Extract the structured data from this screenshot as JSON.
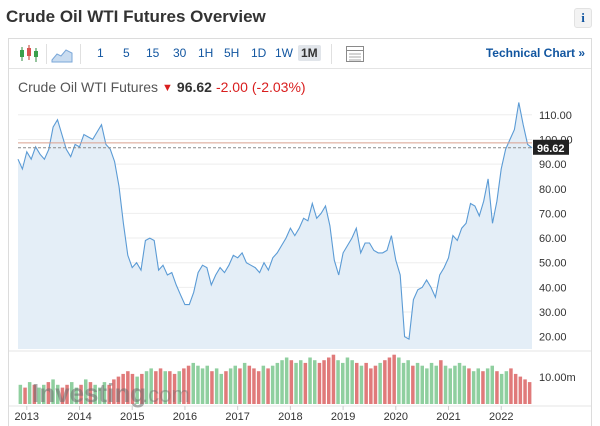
{
  "header": {
    "title": "Crude Oil WTI Futures Overview",
    "info_icon": "i"
  },
  "toolbar": {
    "intervals": [
      "1",
      "5",
      "15",
      "30",
      "1H",
      "5H",
      "1D",
      "1W",
      "1M"
    ],
    "active": "1M",
    "technical_chart": "Technical Chart »"
  },
  "quote": {
    "name": "Crude Oil WTI Futures",
    "price": "96.62",
    "change": "-2.00",
    "change_pct": "(-2.03%)"
  },
  "watermark": {
    "brand": "Investing",
    "suffix": ".com"
  },
  "colors": {
    "line": "#5b9bd5",
    "area": "#e4eef7",
    "up_volume": "#8fcf9f",
    "down_volume": "#e07a7a",
    "price_line": "#c0392b",
    "ref_line": "#d9a08f",
    "negative": "#d91e1e"
  },
  "chart_data": {
    "type": "area",
    "title": "Crude Oil WTI Futures",
    "x_tick_labels": [
      "2013",
      "2014",
      "2015",
      "2016",
      "2017",
      "2018",
      "2019",
      "2020",
      "2021",
      "2022"
    ],
    "y_tick_labels": [
      "110.00",
      "100.00",
      "90.00",
      "80.00",
      "70.00",
      "60.00",
      "50.00",
      "40.00",
      "30.00",
      "20.00"
    ],
    "ylim": [
      15,
      116
    ],
    "current_price_label": "96.62",
    "volume_axis_label": "10.00m",
    "series": [
      {
        "name": "Crude Oil WTI Futures",
        "points": [
          [
            "2012-11",
            92
          ],
          [
            "2012-12",
            88
          ],
          [
            "2013-01",
            95
          ],
          [
            "2013-02",
            92
          ],
          [
            "2013-03",
            97
          ],
          [
            "2013-04",
            94
          ],
          [
            "2013-05",
            92
          ],
          [
            "2013-06",
            96
          ],
          [
            "2013-07",
            105
          ],
          [
            "2013-08",
            108
          ],
          [
            "2013-09",
            102
          ],
          [
            "2013-10",
            96
          ],
          [
            "2013-11",
            93
          ],
          [
            "2013-12",
            98
          ],
          [
            "2014-01",
            97
          ],
          [
            "2014-02",
            102
          ],
          [
            "2014-03",
            101
          ],
          [
            "2014-04",
            100
          ],
          [
            "2014-05",
            103
          ],
          [
            "2014-06",
            106
          ],
          [
            "2014-07",
            98
          ],
          [
            "2014-08",
            96
          ],
          [
            "2014-09",
            91
          ],
          [
            "2014-10",
            81
          ],
          [
            "2014-11",
            66
          ],
          [
            "2014-12",
            53
          ],
          [
            "2015-01",
            48
          ],
          [
            "2015-02",
            50
          ],
          [
            "2015-03",
            47
          ],
          [
            "2015-04",
            59
          ],
          [
            "2015-05",
            60
          ],
          [
            "2015-06",
            59
          ],
          [
            "2015-07",
            47
          ],
          [
            "2015-08",
            49
          ],
          [
            "2015-09",
            45
          ],
          [
            "2015-10",
            46
          ],
          [
            "2015-11",
            41
          ],
          [
            "2015-12",
            37
          ],
          [
            "2016-01",
            33
          ],
          [
            "2016-02",
            33
          ],
          [
            "2016-03",
            38
          ],
          [
            "2016-04",
            46
          ],
          [
            "2016-05",
            49
          ],
          [
            "2016-06",
            48
          ],
          [
            "2016-07",
            41
          ],
          [
            "2016-08",
            45
          ],
          [
            "2016-09",
            48
          ],
          [
            "2016-10",
            46
          ],
          [
            "2016-11",
            49
          ],
          [
            "2016-12",
            53
          ],
          [
            "2017-01",
            52
          ],
          [
            "2017-02",
            54
          ],
          [
            "2017-03",
            50
          ],
          [
            "2017-04",
            49
          ],
          [
            "2017-05",
            48
          ],
          [
            "2017-06",
            46
          ],
          [
            "2017-07",
            50
          ],
          [
            "2017-08",
            47
          ],
          [
            "2017-09",
            52
          ],
          [
            "2017-10",
            54
          ],
          [
            "2017-11",
            57
          ],
          [
            "2017-12",
            60
          ],
          [
            "2018-01",
            64
          ],
          [
            "2018-02",
            61
          ],
          [
            "2018-03",
            64
          ],
          [
            "2018-04",
            68
          ],
          [
            "2018-05",
            67
          ],
          [
            "2018-06",
            74
          ],
          [
            "2018-07",
            68
          ],
          [
            "2018-08",
            70
          ],
          [
            "2018-09",
            73
          ],
          [
            "2018-10",
            65
          ],
          [
            "2018-11",
            51
          ],
          [
            "2018-12",
            45
          ],
          [
            "2019-01",
            54
          ],
          [
            "2019-02",
            57
          ],
          [
            "2019-03",
            60
          ],
          [
            "2019-04",
            64
          ],
          [
            "2019-05",
            54
          ],
          [
            "2019-06",
            58
          ],
          [
            "2019-07",
            58
          ],
          [
            "2019-08",
            55
          ],
          [
            "2019-09",
            54
          ],
          [
            "2019-10",
            54
          ],
          [
            "2019-11",
            55
          ],
          [
            "2019-12",
            61
          ],
          [
            "2020-01",
            51
          ],
          [
            "2020-02",
            45
          ],
          [
            "2020-03",
            20
          ],
          [
            "2020-04",
            19
          ],
          [
            "2020-05",
            35
          ],
          [
            "2020-06",
            39
          ],
          [
            "2020-07",
            40
          ],
          [
            "2020-08",
            43
          ],
          [
            "2020-09",
            40
          ],
          [
            "2020-10",
            36
          ],
          [
            "2020-11",
            45
          ],
          [
            "2020-12",
            48
          ],
          [
            "2021-01",
            52
          ],
          [
            "2021-02",
            61
          ],
          [
            "2021-03",
            59
          ],
          [
            "2021-04",
            64
          ],
          [
            "2021-05",
            66
          ],
          [
            "2021-06",
            74
          ],
          [
            "2021-07",
            73
          ],
          [
            "2021-08",
            69
          ],
          [
            "2021-09",
            75
          ],
          [
            "2021-10",
            84
          ],
          [
            "2021-11",
            66
          ],
          [
            "2021-12",
            75
          ],
          [
            "2022-01",
            88
          ],
          [
            "2022-02",
            96
          ],
          [
            "2022-03",
            100
          ],
          [
            "2022-04",
            104
          ],
          [
            "2022-05",
            115
          ],
          [
            "2022-06",
            106
          ],
          [
            "2022-07",
            98
          ],
          [
            "2022-08",
            96.62
          ]
        ]
      },
      {
        "name": "Volume",
        "unit": "m",
        "values": [
          [
            7,
            "u"
          ],
          [
            6,
            "d"
          ],
          [
            8,
            "u"
          ],
          [
            7,
            "d"
          ],
          [
            6,
            "u"
          ],
          [
            7,
            "u"
          ],
          [
            8,
            "d"
          ],
          [
            9,
            "u"
          ],
          [
            7,
            "u"
          ],
          [
            6,
            "d"
          ],
          [
            7,
            "d"
          ],
          [
            8,
            "u"
          ],
          [
            6,
            "u"
          ],
          [
            7,
            "d"
          ],
          [
            9,
            "u"
          ],
          [
            8,
            "d"
          ],
          [
            7,
            "u"
          ],
          [
            6,
            "u"
          ],
          [
            8,
            "u"
          ],
          [
            7,
            "d"
          ],
          [
            9,
            "d"
          ],
          [
            10,
            "d"
          ],
          [
            11,
            "d"
          ],
          [
            12,
            "d"
          ],
          [
            11,
            "d"
          ],
          [
            10,
            "u"
          ],
          [
            11,
            "d"
          ],
          [
            12,
            "u"
          ],
          [
            13,
            "u"
          ],
          [
            12,
            "d"
          ],
          [
            13,
            "d"
          ],
          [
            12,
            "u"
          ],
          [
            12,
            "d"
          ],
          [
            11,
            "d"
          ],
          [
            12,
            "u"
          ],
          [
            13,
            "d"
          ],
          [
            14,
            "d"
          ],
          [
            15,
            "u"
          ],
          [
            14,
            "u"
          ],
          [
            13,
            "u"
          ],
          [
            14,
            "u"
          ],
          [
            12,
            "d"
          ],
          [
            13,
            "u"
          ],
          [
            11,
            "u"
          ],
          [
            12,
            "d"
          ],
          [
            13,
            "u"
          ],
          [
            14,
            "u"
          ],
          [
            13,
            "d"
          ],
          [
            15,
            "u"
          ],
          [
            14,
            "d"
          ],
          [
            13,
            "d"
          ],
          [
            12,
            "d"
          ],
          [
            14,
            "u"
          ],
          [
            13,
            "d"
          ],
          [
            14,
            "u"
          ],
          [
            15,
            "u"
          ],
          [
            16,
            "u"
          ],
          [
            17,
            "u"
          ],
          [
            16,
            "d"
          ],
          [
            15,
            "u"
          ],
          [
            16,
            "u"
          ],
          [
            15,
            "d"
          ],
          [
            17,
            "u"
          ],
          [
            16,
            "u"
          ],
          [
            15,
            "d"
          ],
          [
            16,
            "d"
          ],
          [
            17,
            "d"
          ],
          [
            18,
            "d"
          ],
          [
            16,
            "u"
          ],
          [
            15,
            "u"
          ],
          [
            17,
            "u"
          ],
          [
            16,
            "u"
          ],
          [
            15,
            "d"
          ],
          [
            14,
            "u"
          ],
          [
            15,
            "d"
          ],
          [
            13,
            "d"
          ],
          [
            14,
            "d"
          ],
          [
            15,
            "u"
          ],
          [
            16,
            "d"
          ],
          [
            17,
            "d"
          ],
          [
            18,
            "d"
          ],
          [
            17,
            "u"
          ],
          [
            15,
            "u"
          ],
          [
            16,
            "u"
          ],
          [
            14,
            "d"
          ],
          [
            15,
            "u"
          ],
          [
            14,
            "u"
          ],
          [
            13,
            "u"
          ],
          [
            15,
            "u"
          ],
          [
            14,
            "u"
          ],
          [
            16,
            "d"
          ],
          [
            14,
            "u"
          ],
          [
            13,
            "u"
          ],
          [
            14,
            "u"
          ],
          [
            15,
            "u"
          ],
          [
            14,
            "u"
          ],
          [
            13,
            "d"
          ],
          [
            12,
            "u"
          ],
          [
            13,
            "u"
          ],
          [
            12,
            "d"
          ],
          [
            13,
            "u"
          ],
          [
            14,
            "u"
          ],
          [
            12,
            "d"
          ],
          [
            11,
            "u"
          ],
          [
            12,
            "u"
          ],
          [
            13,
            "d"
          ],
          [
            11,
            "d"
          ],
          [
            10,
            "d"
          ],
          [
            9,
            "d"
          ],
          [
            8,
            "d"
          ]
        ]
      }
    ],
    "grid": true
  }
}
